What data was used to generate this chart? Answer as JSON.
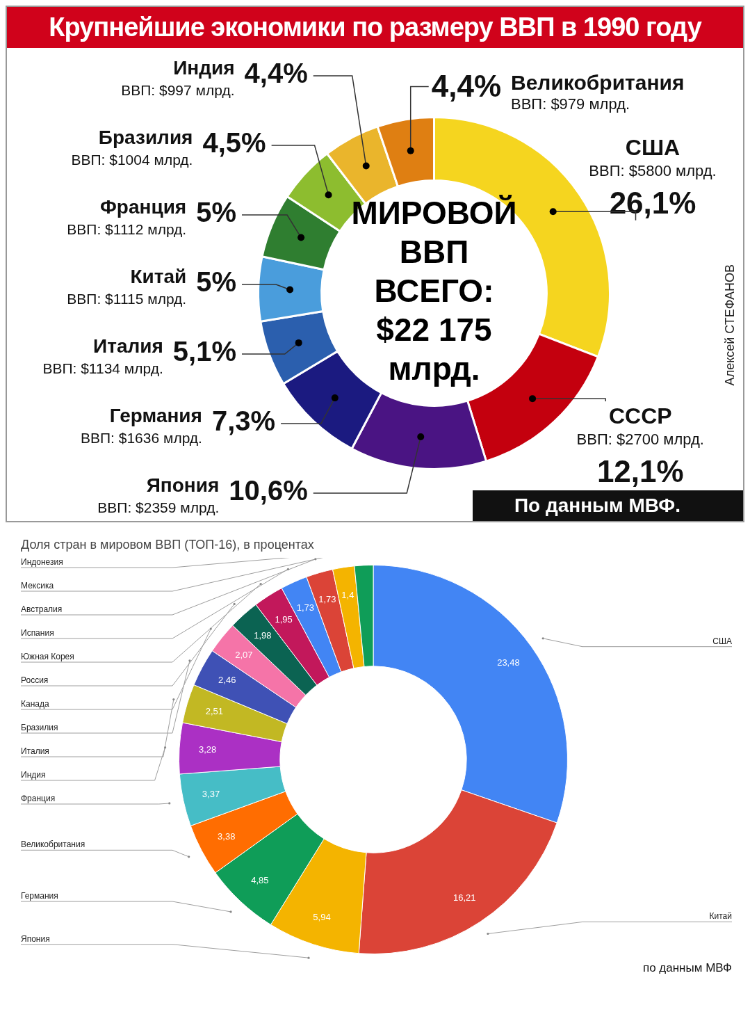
{
  "chart_data": [
    {
      "type": "donut",
      "title": "Крупнейшие экономики по размеру ВВП в 1990 году",
      "categories": [
        "США",
        "СССР",
        "Япония",
        "Германия",
        "Италия",
        "Китай",
        "Франция",
        "Бразилия",
        "Индия",
        "Великобритания"
      ],
      "values": [
        26.1,
        12.1,
        10.6,
        7.3,
        5.1,
        5,
        5,
        4.5,
        4.4,
        4.4
      ],
      "value_labels": [
        "26,1%",
        "12,1%",
        "10,6%",
        "7,3%",
        "5,1%",
        "5%",
        "5%",
        "4,5%",
        "4,4%",
        "4,4%"
      ],
      "colors": [
        "#f5d51f",
        "#c4000e",
        "#4a1483",
        "#1b1a80",
        "#2b5fae",
        "#4a9ddc",
        "#2f7e30",
        "#8dbd2f",
        "#eab52c",
        "#df7f12"
      ],
      "annotations": [
        {
          "text": "ВВП: $5800 млрд.",
          "x": "США"
        },
        {
          "text": "ВВП: $2700 млрд.",
          "x": "СССР"
        },
        {
          "text": "ВВП: $2359 млрд.",
          "x": "Япония"
        },
        {
          "text": "ВВП: $1636 млрд.",
          "x": "Германия"
        },
        {
          "text": "ВВП: $1134 млрд.",
          "x": "Италия"
        },
        {
          "text": "ВВП: $1115 млрд.",
          "x": "Китай"
        },
        {
          "text": "ВВП: $1112 млрд.",
          "x": "Франция"
        },
        {
          "text": "ВВП: $1004 млрд.",
          "x": "Бразилия"
        },
        {
          "text": "ВВП: $997 млрд.",
          "x": "Индия"
        },
        {
          "text": "ВВП: $979 млрд.",
          "x": "Великобритания"
        },
        "МИРОВОЙ ВВП ВСЕГО: $22 175 млрд.",
        "По данным МВФ.",
        "Алексей СТЕФАНОВ"
      ]
    },
    {
      "type": "donut",
      "title": "Доля стран в мировом ВВП (ТОП-16), в процентах",
      "categories": [
        "США",
        "Китай",
        "Япония",
        "Германия",
        "Великобритания",
        "Франция",
        "Индия",
        "Италия",
        "Бразилия",
        "Канада",
        "Россия",
        "Южная Корея",
        "Испания",
        "Австралия",
        "Мексика",
        "Индонезия"
      ],
      "values": [
        23.48,
        16.21,
        5.94,
        4.85,
        3.38,
        3.37,
        3.28,
        2.51,
        2.46,
        2.07,
        1.98,
        1.95,
        1.73,
        1.73,
        1.4,
        1.2
      ],
      "value_labels": [
        "23,48",
        "16,21",
        "5,94",
        "4,85",
        "3,38",
        "3,37",
        "3,28",
        "2,51",
        "2,46",
        "2,07",
        "1,98",
        "1,95",
        "1,73",
        "1,73",
        "1,4",
        null
      ],
      "colors": [
        "#4285f4",
        "#db4437",
        "#f4b400",
        "#0f9d58",
        "#ff6d01",
        "#46bdc6",
        "#ab30c4",
        "#c2b823",
        "#3f51b5",
        "#f574a8",
        "#0b6352",
        "#c2185b",
        "#4285f4",
        "#db4437",
        "#f4b400",
        "#0f9d58"
      ],
      "annotations": [
        "по данным МВФ"
      ]
    }
  ]
}
